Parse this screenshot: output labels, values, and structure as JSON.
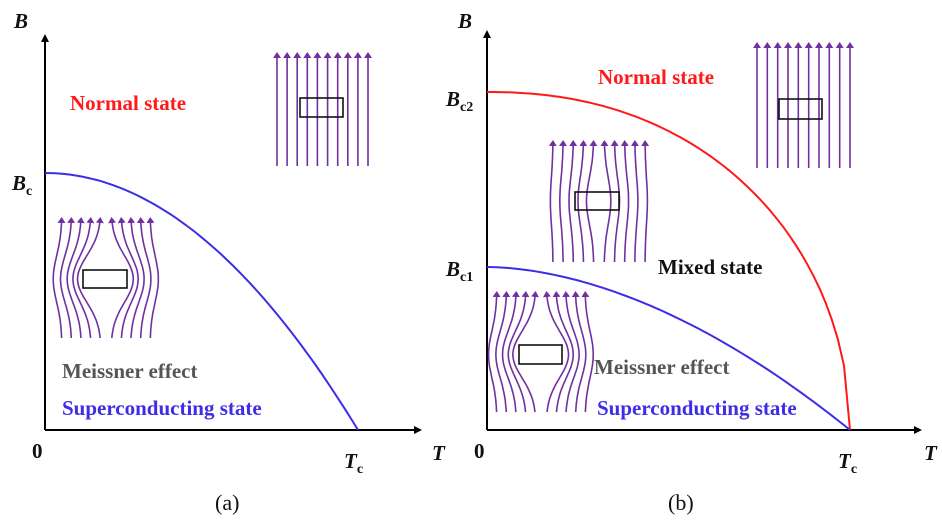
{
  "panel_a": {
    "axis_y": "B",
    "axis_x": "T",
    "origin": "0",
    "critical_field": {
      "symbol": "B",
      "subscript": "c"
    },
    "critical_temperature": {
      "symbol": "T",
      "subscript": "c"
    },
    "regions": {
      "normal": "Normal state",
      "effect": "Meissner effect",
      "superconducting": "Superconducting state"
    },
    "caption": "(a)"
  },
  "panel_b": {
    "axis_y": "B",
    "axis_x": "T",
    "origin": "0",
    "upper_critical_field": {
      "symbol": "B",
      "subscript": "c2"
    },
    "lower_critical_field": {
      "symbol": "B",
      "subscript": "c1"
    },
    "critical_temperature": {
      "symbol": "T",
      "subscript": "c"
    },
    "regions": {
      "normal": "Normal state",
      "mixed": "Mixed state",
      "effect": "Meissner effect",
      "superconducting": "Superconducting state"
    },
    "caption": "(b)"
  }
}
